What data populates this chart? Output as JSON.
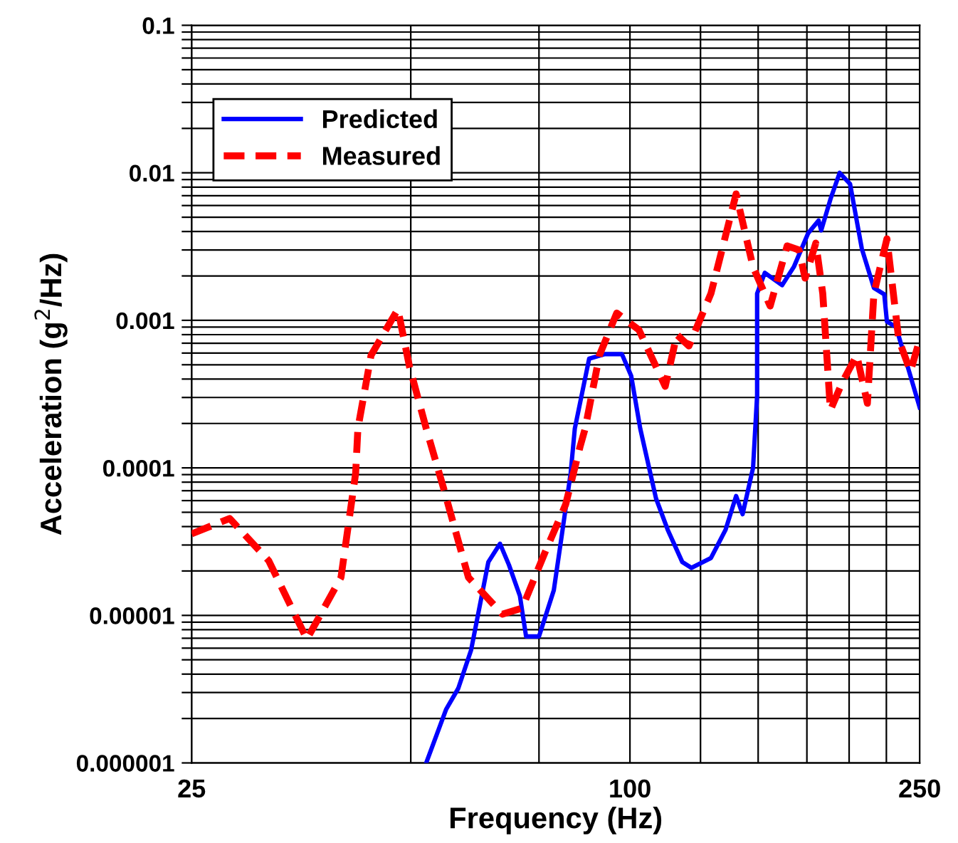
{
  "chart_data": {
    "type": "line",
    "xlabel": "Frequency (Hz)",
    "ylabel": "Acceleration (g$^{2}$/Hz)",
    "log": "xy",
    "grid": true,
    "legend": "top left",
    "marker": "none",
    "xlim": [
      25,
      250
    ],
    "ylim": [
      1e-06,
      0.1
    ],
    "xticks": [
      25,
      {
        "value": 50,
        "label": null
      },
      {
        "value": 75,
        "label": null
      },
      100,
      {
        "value": 125,
        "label": null
      },
      {
        "value": 150,
        "label": null
      },
      {
        "value": 175,
        "label": null
      },
      {
        "value": 200,
        "label": null
      },
      {
        "value": 225,
        "label": null
      },
      250
    ],
    "yticks": [
      {
        "value": 1e-06,
        "label": "0.000001"
      },
      {
        "value": 2e-06,
        "label": null
      },
      {
        "value": 3e-06,
        "label": null
      },
      {
        "value": 4e-06,
        "label": null
      },
      {
        "value": 5e-06,
        "label": null
      },
      {
        "value": 6e-06,
        "label": null
      },
      {
        "value": 7e-06,
        "label": null
      },
      {
        "value": 8e-06,
        "label": null
      },
      {
        "value": 9e-06,
        "label": null
      },
      {
        "value": 1e-05,
        "label": "0.00001"
      },
      {
        "value": 2e-05,
        "label": null
      },
      {
        "value": 3e-05,
        "label": null
      },
      {
        "value": 4e-05,
        "label": null
      },
      {
        "value": 5e-05,
        "label": null
      },
      {
        "value": 6e-05,
        "label": null
      },
      {
        "value": 7e-05,
        "label": null
      },
      {
        "value": 8e-05,
        "label": null
      },
      {
        "value": 9e-05,
        "label": null
      },
      {
        "value": 0.0001,
        "label": "0.0001"
      },
      {
        "value": 0.0002,
        "label": null
      },
      {
        "value": 0.0003,
        "label": null
      },
      {
        "value": 0.0004,
        "label": null
      },
      {
        "value": 0.0005,
        "label": null
      },
      {
        "value": 0.0006,
        "label": null
      },
      {
        "value": 0.0007,
        "label": null
      },
      {
        "value": 0.0008,
        "label": null
      },
      {
        "value": 0.0009,
        "label": null
      },
      {
        "value": 0.001,
        "label": "0.001"
      },
      {
        "value": 0.002,
        "label": null
      },
      {
        "value": 0.003,
        "label": null
      },
      {
        "value": 0.004,
        "label": null
      },
      {
        "value": 0.005,
        "label": null
      },
      {
        "value": 0.006,
        "label": null
      },
      {
        "value": 0.007,
        "label": null
      },
      {
        "value": 0.008,
        "label": null
      },
      {
        "value": 0.009,
        "label": null
      },
      {
        "value": 0.01,
        "label": "0.01"
      },
      {
        "value": 0.02,
        "label": null
      },
      {
        "value": 0.03,
        "label": null
      },
      {
        "value": 0.04,
        "label": null
      },
      {
        "value": 0.05,
        "label": null
      },
      {
        "value": 0.06,
        "label": null
      },
      {
        "value": 0.07,
        "label": null
      },
      {
        "value": 0.08,
        "label": null
      },
      {
        "value": 0.09,
        "label": null
      },
      {
        "value": 0.1,
        "label": "0.1"
      }
    ],
    "series": [
      {
        "name": "Predicted",
        "color": "#0000ff",
        "line_style": "solid",
        "x": [
          52.5,
          55.9,
          58.1,
          60.5,
          63.9,
          66.3,
          68.2,
          70.6,
          72.0,
          75.0,
          78.6,
          80.3,
          82.9,
          84.0,
          87.9,
          92.4,
          97.5,
          100.4,
          103.3,
          108.6,
          112.7,
          118,
          121.5,
          129.2,
          135.3,
          139.9,
          142.8,
          147.6,
          149.5,
          149.5,
          153.2,
          161.8,
          167.9,
          175.7,
          181.6,
          183.1,
          188.5,
          194.1,
          200.6,
          208.2,
          216.3,
          223.5,
          225.4,
          232,
          250
        ],
        "values": [
          1e-06,
          2.3e-06,
          3.2e-06,
          5.8e-06,
          2.3e-05,
          3.06e-05,
          2.2e-05,
          1.36e-05,
          7.2e-06,
          7.2e-06,
          1.48e-05,
          3.06e-05,
          9.2e-05,
          0.000185,
          0.00055,
          0.00059,
          0.00059,
          0.00042,
          0.000185,
          6.2e-05,
          3.8e-05,
          2.3e-05,
          2.1e-05,
          2.45e-05,
          3.8e-05,
          6.45e-05,
          4.85e-05,
          0.0001,
          0.00031,
          0.00152,
          0.0021,
          0.00173,
          0.0023,
          0.0039,
          0.00475,
          0.00407,
          0.0066,
          0.01,
          0.0084,
          0.00306,
          0.00166,
          0.0015,
          0.00098,
          0.0009,
          0.000257
        ]
      },
      {
        "name": "Measured",
        "color": "#ff0000",
        "line_style": "dashed",
        "x": [
          25,
          28.2,
          31.9,
          36.0,
          40.1,
          42.0,
          42.3,
          44.1,
          48.0,
          49.8,
          52.5,
          55.5,
          60.0,
          66.8,
          71.1,
          76.6,
          81.6,
          85.4,
          86.8,
          90.8,
          95.9,
          102.9,
          111.8,
          116,
          120.5,
          129.2,
          139.9,
          147.6,
          155.8,
          164.4,
          170.7,
          174,
          180,
          184,
          188.5,
          195.7,
          204.9,
          211.9,
          216.3,
          225.4,
          234,
          242.8,
          250
        ],
        "values": [
          3.57e-05,
          4.54e-05,
          2.35e-05,
          6.9e-06,
          1.81e-05,
          9.2e-05,
          0.000185,
          0.00058,
          0.00119,
          0.000485,
          0.000185,
          7.2e-05,
          1.81e-05,
          1.02e-05,
          1.12e-05,
          2.74e-05,
          5.65e-05,
          0.000139,
          0.000185,
          0.00058,
          0.00112,
          0.00086,
          0.000357,
          0.0008,
          0.00067,
          0.00152,
          0.0072,
          0.0023,
          0.00125,
          0.0032,
          0.003,
          0.00193,
          0.00334,
          0.00152,
          0.000246,
          0.00038,
          0.00058,
          0.000274,
          0.00152,
          0.00357,
          0.00074,
          0.00045,
          0.00074
        ]
      }
    ]
  }
}
